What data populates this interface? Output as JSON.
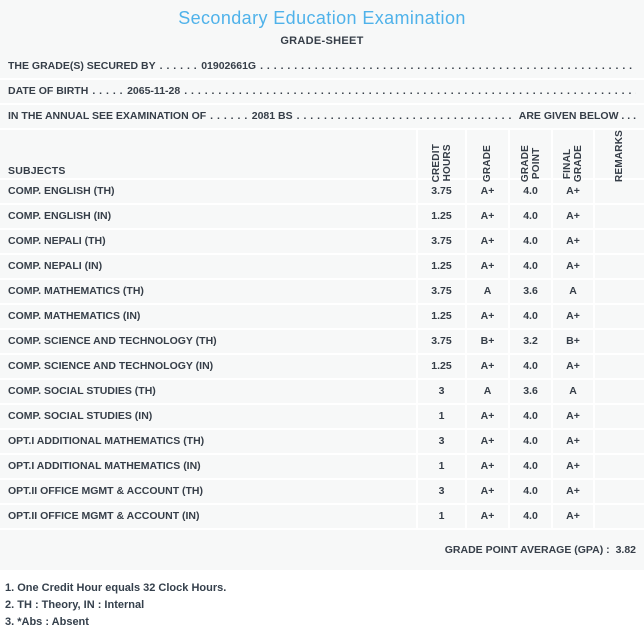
{
  "title": "Secondary Education Examination",
  "subtitle": "GRADE-SHEET",
  "info_lines": [
    {
      "label": "THE GRADE(S) SECURED BY",
      "dots_before": ". . . . . .",
      "value": "01902661G",
      "dots_after": ". . . . . . . . . . . . . . . . . . . . . . . . . . . . . . . . . . . . . . . . . . . . . . . . . . . . . . . . . . . . . . . . . . . . . . . . . .",
      "suffix": ""
    },
    {
      "label": "DATE OF BIRTH",
      "dots_before": ". . . . .",
      "value": "2065-11-28",
      "dots_after": ". . . . . . . . . . . . . . . . . . . . . . . . . . . . . . . . . . . . . . . . . . . . . . . . . . . . . . . . . . . . . . . . . . . . . . . . . .",
      "suffix": ""
    },
    {
      "label": "IN THE ANNUAL SEE EXAMINATION OF",
      "dots_before": ". . . . . .",
      "value": "2081 BS",
      "dots_after": ". . . . . . . . . . . . . . . . . . . . . . . . . . . . . . . . . . . . . . . . . . . . . . . . . .",
      "suffix": "ARE GIVEN BELOW . . ."
    }
  ],
  "table": {
    "headers": {
      "subjects": "SUBJECTS",
      "credit_hours": "CREDIT\nHOURS",
      "grade": "GRADE",
      "grade_point": "GRADE\nPOINT",
      "final_grade": "FINAL\nGRADE",
      "remarks": "REMARKS"
    },
    "rows": [
      {
        "subject": "COMP. ENGLISH (TH)",
        "credit_hours": "3.75",
        "grade": "A+",
        "grade_point": "4.0",
        "final_grade": "A+",
        "remarks": ""
      },
      {
        "subject": "COMP. ENGLISH (IN)",
        "credit_hours": "1.25",
        "grade": "A+",
        "grade_point": "4.0",
        "final_grade": "A+",
        "remarks": ""
      },
      {
        "subject": "COMP. NEPALI (TH)",
        "credit_hours": "3.75",
        "grade": "A+",
        "grade_point": "4.0",
        "final_grade": "A+",
        "remarks": ""
      },
      {
        "subject": "COMP. NEPALI (IN)",
        "credit_hours": "1.25",
        "grade": "A+",
        "grade_point": "4.0",
        "final_grade": "A+",
        "remarks": ""
      },
      {
        "subject": "COMP. MATHEMATICS (TH)",
        "credit_hours": "3.75",
        "grade": "A",
        "grade_point": "3.6",
        "final_grade": "A",
        "remarks": ""
      },
      {
        "subject": "COMP. MATHEMATICS (IN)",
        "credit_hours": "1.25",
        "grade": "A+",
        "grade_point": "4.0",
        "final_grade": "A+",
        "remarks": ""
      },
      {
        "subject": "COMP. SCIENCE AND TECHNOLOGY (TH)",
        "credit_hours": "3.75",
        "grade": "B+",
        "grade_point": "3.2",
        "final_grade": "B+",
        "remarks": ""
      },
      {
        "subject": "COMP. SCIENCE AND TECHNOLOGY (IN)",
        "credit_hours": "1.25",
        "grade": "A+",
        "grade_point": "4.0",
        "final_grade": "A+",
        "remarks": ""
      },
      {
        "subject": "COMP. SOCIAL STUDIES (TH)",
        "credit_hours": "3",
        "grade": "A",
        "grade_point": "3.6",
        "final_grade": "A",
        "remarks": ""
      },
      {
        "subject": "COMP. SOCIAL STUDIES (IN)",
        "credit_hours": "1",
        "grade": "A+",
        "grade_point": "4.0",
        "final_grade": "A+",
        "remarks": ""
      },
      {
        "subject": "OPT.I ADDITIONAL MATHEMATICS (TH)",
        "credit_hours": "3",
        "grade": "A+",
        "grade_point": "4.0",
        "final_grade": "A+",
        "remarks": ""
      },
      {
        "subject": "OPT.I ADDITIONAL MATHEMATICS (IN)",
        "credit_hours": "1",
        "grade": "A+",
        "grade_point": "4.0",
        "final_grade": "A+",
        "remarks": ""
      },
      {
        "subject": "OPT.II OFFICE MGMT & ACCOUNT (TH)",
        "credit_hours": "3",
        "grade": "A+",
        "grade_point": "4.0",
        "final_grade": "A+",
        "remarks": ""
      },
      {
        "subject": "OPT.II OFFICE MGMT & ACCOUNT (IN)",
        "credit_hours": "1",
        "grade": "A+",
        "grade_point": "4.0",
        "final_grade": "A+",
        "remarks": ""
      }
    ]
  },
  "gpa": {
    "label": "GRADE POINT AVERAGE (GPA) :",
    "value": "3.82"
  },
  "notes": [
    "1. One Credit Hour equals 32 Clock Hours.",
    "2. TH : Theory, IN : Internal",
    "3. *Abs : Absent"
  ],
  "colors": {
    "title_accent": "#4fb2ea",
    "text": "#363e48",
    "sheet_background": "#f7f8f8",
    "separator": "#ffffff"
  }
}
